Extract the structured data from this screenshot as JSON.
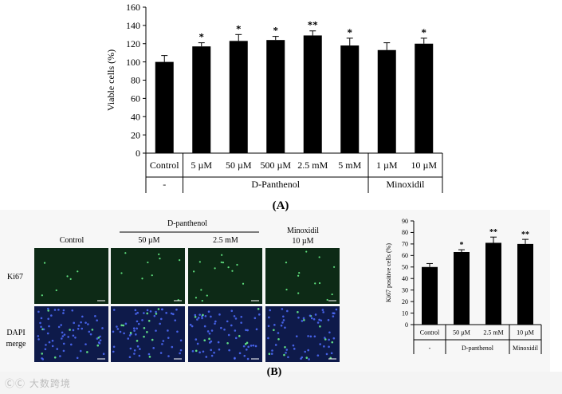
{
  "panelA": {
    "label": "(A)",
    "chart_data": {
      "type": "bar",
      "ylabel": "Viable cells (%)",
      "ylim": [
        0,
        160
      ],
      "yticks": [
        "0",
        "20",
        "40",
        "60",
        "80",
        "100",
        "120",
        "140",
        "160"
      ],
      "categories": [
        "Control",
        "5 µM",
        "50 µM",
        "500 µM",
        "2.5 mM",
        "5 mM",
        "1 µM",
        "10 µM"
      ],
      "values": [
        100,
        117,
        123,
        124,
        129,
        118,
        113,
        120
      ],
      "errors": [
        7,
        4,
        7,
        4,
        5,
        8,
        8,
        6
      ],
      "significance": [
        "",
        "*",
        "*",
        "*",
        "**",
        "*",
        "",
        "*"
      ],
      "groups": [
        {
          "label": "-",
          "span": [
            0,
            0
          ]
        },
        {
          "label": "D-Panthenol",
          "span": [
            1,
            5
          ]
        },
        {
          "label": "Minoxidil",
          "span": [
            6,
            7
          ]
        }
      ]
    }
  },
  "panelB": {
    "label": "(B)",
    "microscopy": {
      "group_header": "D-panthenol",
      "col_labels": [
        "Control",
        "50 µM",
        "2.5 mM"
      ],
      "minoxidil_label": [
        "Minoxidil",
        "10 µM"
      ],
      "row_labels": [
        "Ki67",
        "DAPI merge"
      ],
      "colors": {
        "ki67_bg": "#0d2a16",
        "dapi_bg": "#0e1a4a",
        "ki67_dot": "#6dff8f",
        "dapi_dot": "#4f6dff"
      }
    },
    "chart_data": {
      "type": "bar",
      "ylabel": "Ki67 positive cells (%)",
      "ylim": [
        0,
        90
      ],
      "yticks": [
        "0",
        "10",
        "20",
        "30",
        "40",
        "50",
        "60",
        "70",
        "80",
        "90"
      ],
      "categories": [
        "Control",
        "50 µM",
        "2.5 mM",
        "10 µM"
      ],
      "values": [
        50,
        63,
        71,
        70
      ],
      "errors": [
        3,
        2,
        5,
        4
      ],
      "significance": [
        "",
        "*",
        "**",
        "**"
      ],
      "groups": [
        {
          "label": "-",
          "span": [
            0,
            0
          ]
        },
        {
          "label": "D-panthenol",
          "span": [
            1,
            2
          ]
        },
        {
          "label": "Minoxidil",
          "span": [
            3,
            3
          ]
        }
      ]
    }
  },
  "watermark": "ⒸⒸ 大数跨境"
}
